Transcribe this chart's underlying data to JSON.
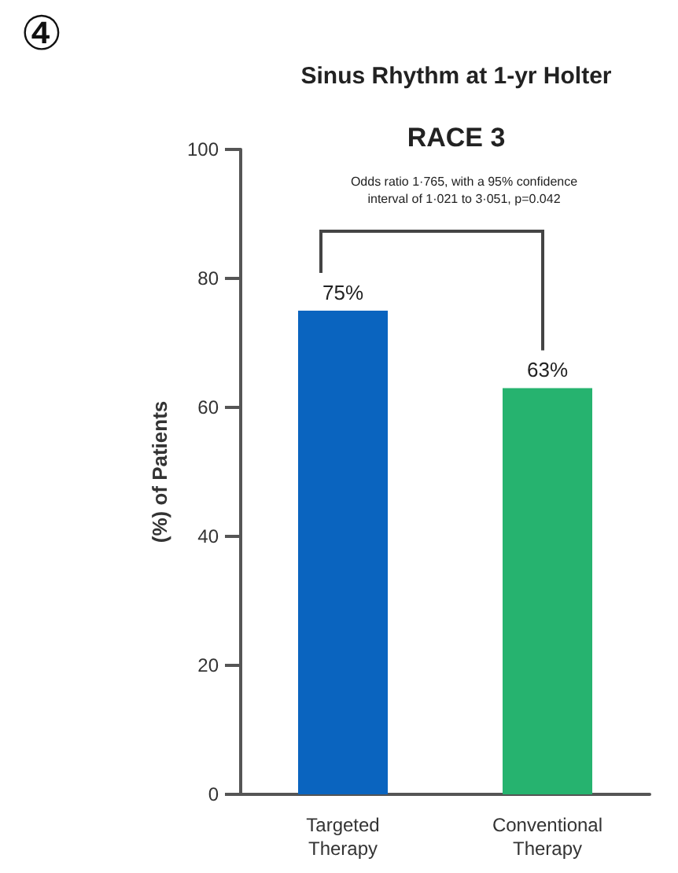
{
  "chart_data": {
    "type": "bar",
    "title": "Sinus Rhythm at 1-yr Holter",
    "subtitle": "RACE 3",
    "ylabel": "(%) of Patients",
    "categories": [
      "Targeted\nTherapy",
      "Conventional\nTherapy"
    ],
    "values": [
      75,
      63
    ],
    "colors": [
      "#0a64bf",
      "#26b36f"
    ],
    "value_labels": [
      "75%",
      "63%"
    ],
    "ylim": [
      0,
      100
    ],
    "yticks": [
      0,
      20,
      40,
      60,
      80,
      100
    ],
    "annotations": [
      "④",
      "Odds ratio 1·765, with a 95% confidence\ninterval of 1·021 to 3·051, p=0.042"
    ]
  }
}
